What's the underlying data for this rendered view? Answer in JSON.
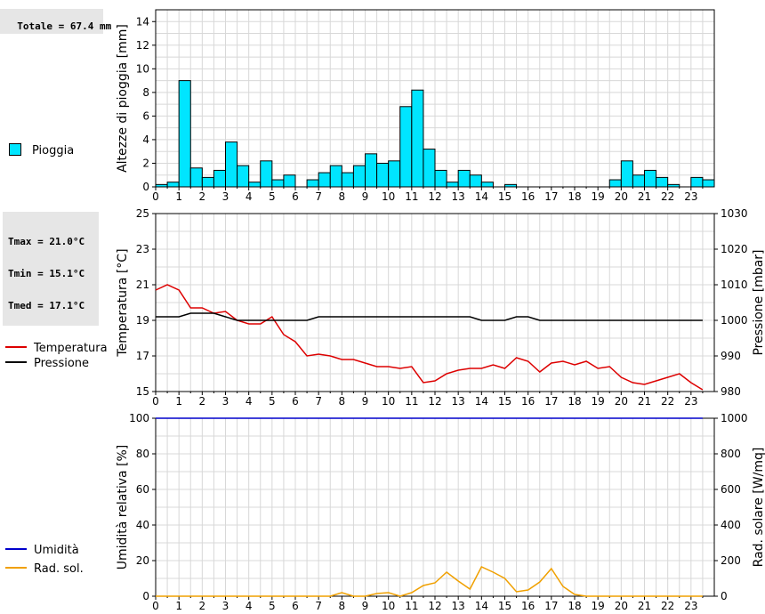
{
  "stats": {
    "rain_total": "Totale = 67.4 mm",
    "tmax": "Tmax = 21.0°C",
    "tmin": "Tmin = 15.1°C",
    "tmed": "Tmed = 17.1°C"
  },
  "chart_data": [
    {
      "type": "bar",
      "ylabel": "Altezze di pioggia [mm]",
      "ylim": [
        0,
        15
      ],
      "yticks": [
        0,
        2,
        4,
        6,
        8,
        10,
        12,
        14
      ],
      "xlim": [
        0,
        24
      ],
      "xticks": [
        0,
        1,
        2,
        3,
        4,
        5,
        6,
        7,
        8,
        9,
        10,
        11,
        12,
        13,
        14,
        15,
        16,
        17,
        18,
        19,
        20,
        21,
        22,
        23
      ],
      "bar_width_hours": 0.5,
      "grid": true,
      "legend_position": "left",
      "series": [
        {
          "name": "Pioggia",
          "color": "#00e5ff",
          "x": [
            0,
            0.5,
            1,
            1.5,
            2,
            2.5,
            3,
            3.5,
            4,
            4.5,
            5,
            5.5,
            6,
            6.5,
            7,
            7.5,
            8,
            8.5,
            9,
            9.5,
            10,
            10.5,
            11,
            11.5,
            12,
            12.5,
            13,
            13.5,
            14,
            14.5,
            15,
            15.5,
            16,
            16.5,
            17,
            17.5,
            18,
            18.5,
            19,
            19.5,
            20,
            20.5,
            21,
            21.5,
            22,
            22.5,
            23,
            23.5
          ],
          "values": [
            0.2,
            0.4,
            9.0,
            1.6,
            0.8,
            1.4,
            3.8,
            1.8,
            0.4,
            2.2,
            0.6,
            1.0,
            0,
            0.6,
            1.2,
            1.8,
            1.2,
            1.8,
            2.8,
            2.0,
            2.2,
            6.8,
            8.2,
            3.2,
            1.4,
            0.4,
            1.4,
            1.0,
            0.4,
            0,
            0.2,
            0,
            0,
            0,
            0,
            0,
            0,
            0,
            0,
            0.6,
            2.2,
            1.0,
            1.4,
            0.8,
            0.2,
            0,
            0.8,
            0.6
          ]
        }
      ]
    },
    {
      "type": "line",
      "ylabel": "Temperatura [°C]",
      "y2label": "Pressione [mbar]",
      "ylim": [
        15,
        25
      ],
      "yticks": [
        15,
        17,
        19,
        21,
        23,
        25
      ],
      "y2lim": [
        980,
        1030
      ],
      "y2ticks": [
        980,
        990,
        1000,
        1010,
        1020,
        1030
      ],
      "xlim": [
        0,
        24
      ],
      "xticks": [
        0,
        1,
        2,
        3,
        4,
        5,
        6,
        7,
        8,
        9,
        10,
        11,
        12,
        13,
        14,
        15,
        16,
        17,
        18,
        19,
        20,
        21,
        22,
        23
      ],
      "grid": true,
      "legend_position": "left",
      "series": [
        {
          "name": "Temperatura",
          "axis": "left",
          "color": "#dd0000",
          "x": [
            0,
            0.5,
            1,
            1.5,
            2,
            2.5,
            3,
            3.5,
            4,
            4.5,
            5,
            5.5,
            6,
            6.5,
            7,
            7.5,
            8,
            8.5,
            9,
            9.5,
            10,
            10.5,
            11,
            11.5,
            12,
            12.5,
            13,
            13.5,
            14,
            14.5,
            15,
            15.5,
            16,
            16.5,
            17,
            17.5,
            18,
            18.5,
            19,
            19.5,
            20,
            20.5,
            21,
            21.5,
            22,
            22.5,
            23,
            23.5
          ],
          "values": [
            20.7,
            21.0,
            20.7,
            19.7,
            19.7,
            19.4,
            19.5,
            19.0,
            18.8,
            18.8,
            19.2,
            18.2,
            17.8,
            17.0,
            17.1,
            17.0,
            16.8,
            16.8,
            16.6,
            16.4,
            16.4,
            16.3,
            16.4,
            15.5,
            15.6,
            16.0,
            16.2,
            16.3,
            16.3,
            16.5,
            16.3,
            16.9,
            16.7,
            16.1,
            16.6,
            16.7,
            16.5,
            16.7,
            16.3,
            16.4,
            15.8,
            15.5,
            15.4,
            15.6,
            15.8,
            16.0,
            15.5,
            15.1
          ]
        },
        {
          "name": "Pressione",
          "axis": "right",
          "color": "#000000",
          "x": [
            0,
            0.5,
            1,
            1.5,
            2,
            2.5,
            3,
            3.5,
            4,
            4.5,
            5,
            5.5,
            6,
            6.5,
            7,
            7.5,
            8,
            8.5,
            9,
            9.5,
            10,
            10.5,
            11,
            11.5,
            12,
            12.5,
            13,
            13.5,
            14,
            14.5,
            15,
            15.5,
            16,
            16.5,
            17,
            17.5,
            18,
            18.5,
            19,
            19.5,
            20,
            20.5,
            21,
            21.5,
            22,
            22.5,
            23,
            23.5
          ],
          "values": [
            1001,
            1001,
            1001,
            1002,
            1002,
            1002,
            1001,
            1000,
            1000,
            1000,
            1000,
            1000,
            1000,
            1000,
            1001,
            1001,
            1001,
            1001,
            1001,
            1001,
            1001,
            1001,
            1001,
            1001,
            1001,
            1001,
            1001,
            1001,
            1000,
            1000,
            1000,
            1001,
            1001,
            1000,
            1000,
            1000,
            1000,
            1000,
            1000,
            1000,
            1000,
            1000,
            1000,
            1000,
            1000,
            1000,
            1000,
            1000
          ]
        }
      ]
    },
    {
      "type": "line",
      "ylabel": "Umidità relativa [%]",
      "y2label": "Rad. solare [W/mq]",
      "ylim": [
        0,
        100
      ],
      "yticks": [
        0,
        20,
        40,
        60,
        80,
        100
      ],
      "y2lim": [
        0,
        1000
      ],
      "y2ticks": [
        0,
        200,
        400,
        600,
        800,
        1000
      ],
      "xlim": [
        0,
        24
      ],
      "xticks": [
        0,
        1,
        2,
        3,
        4,
        5,
        6,
        7,
        8,
        9,
        10,
        11,
        12,
        13,
        14,
        15,
        16,
        17,
        18,
        19,
        20,
        21,
        22,
        23
      ],
      "grid": true,
      "legend_position": "left",
      "series": [
        {
          "name": "Umidità",
          "axis": "left",
          "color": "#0000cc",
          "x": [
            0,
            23.5
          ],
          "values": [
            100,
            100
          ]
        },
        {
          "name": "Rad. sol.",
          "axis": "right",
          "color": "#f0a000",
          "x": [
            0,
            0.5,
            1,
            1.5,
            2,
            2.5,
            3,
            3.5,
            4,
            4.5,
            5,
            5.5,
            6,
            6.5,
            7,
            7.5,
            8,
            8.5,
            9,
            9.5,
            10,
            10.5,
            11,
            11.5,
            12,
            12.5,
            13,
            13.5,
            14,
            14.5,
            15,
            15.5,
            16,
            16.5,
            17,
            17.5,
            18,
            18.5,
            19,
            19.5,
            20,
            20.5,
            21,
            21.5,
            22,
            22.5,
            23,
            23.5
          ],
          "values": [
            0,
            0,
            0,
            0,
            0,
            0,
            0,
            0,
            0,
            0,
            0,
            0,
            0,
            0,
            0,
            0,
            20,
            0,
            0,
            15,
            20,
            0,
            20,
            60,
            75,
            135,
            85,
            40,
            165,
            135,
            100,
            25,
            35,
            80,
            155,
            55,
            10,
            0,
            0,
            0,
            0,
            0,
            0,
            0,
            0,
            0,
            0,
            0
          ]
        }
      ]
    }
  ]
}
